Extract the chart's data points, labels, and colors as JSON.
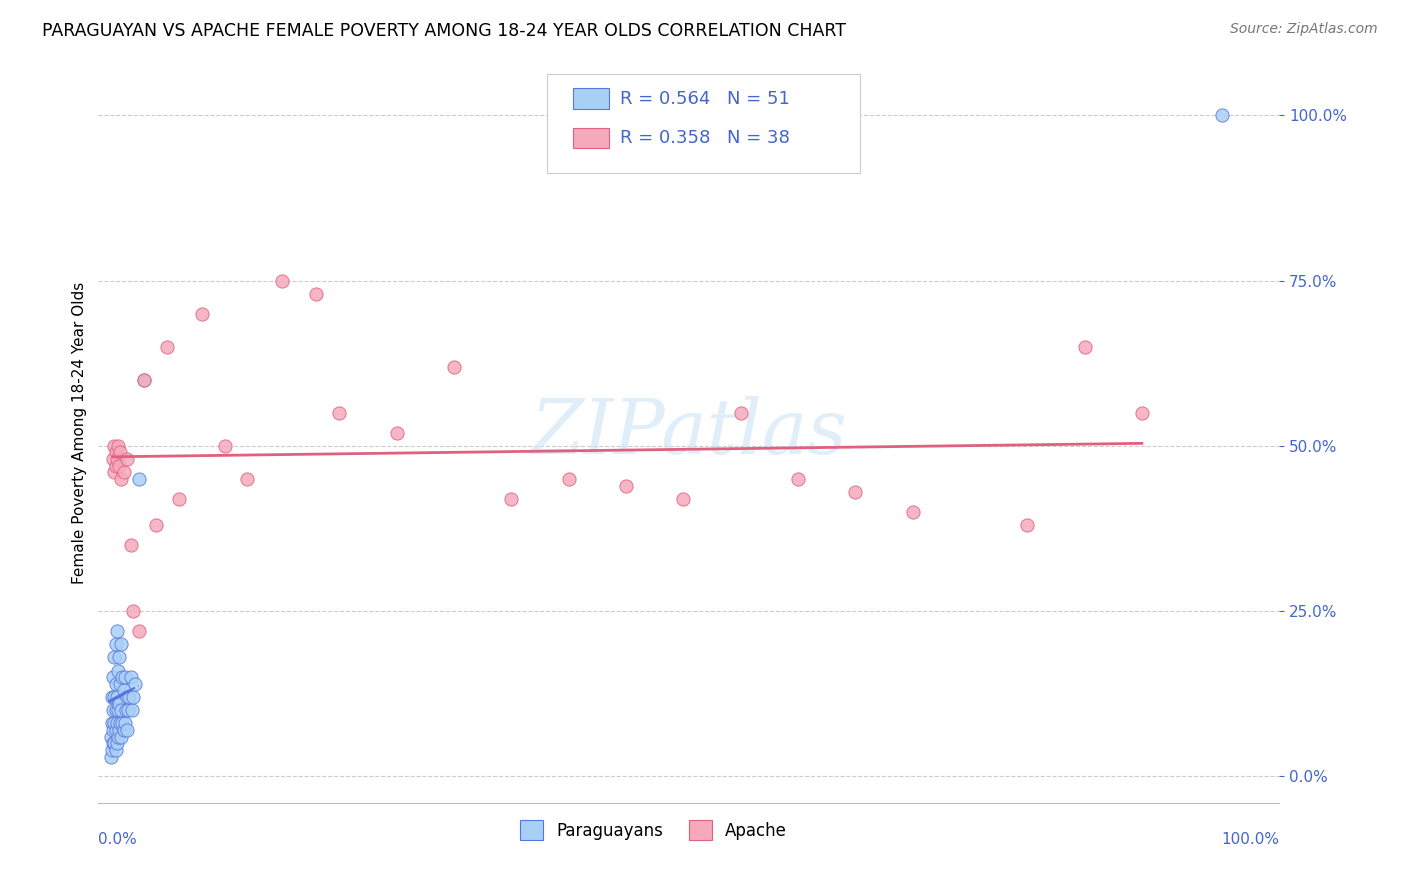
{
  "title": "PARAGUAYAN VS APACHE FEMALE POVERTY AMONG 18-24 YEAR OLDS CORRELATION CHART",
  "source": "Source: ZipAtlas.com",
  "ylabel": "Female Poverty Among 18-24 Year Olds",
  "ytick_values": [
    0.0,
    0.25,
    0.5,
    0.75,
    1.0
  ],
  "ytick_labels": [
    "0.0%",
    "25.0%",
    "50.0%",
    "75.0%",
    "100.0%"
  ],
  "paraguayan_color": "#aacff5",
  "apache_color": "#f5aabb",
  "paraguayan_line_color": "#5577dd",
  "apache_line_color": "#e06080",
  "blue_text_color": "#4466cc",
  "watermark_color": "#cce4f5",
  "paraguayan_x": [
    0.001,
    0.001,
    0.002,
    0.002,
    0.002,
    0.003,
    0.003,
    0.003,
    0.003,
    0.004,
    0.004,
    0.004,
    0.004,
    0.005,
    0.005,
    0.005,
    0.005,
    0.005,
    0.006,
    0.006,
    0.006,
    0.006,
    0.007,
    0.007,
    0.007,
    0.008,
    0.008,
    0.008,
    0.009,
    0.009,
    0.01,
    0.01,
    0.01,
    0.011,
    0.011,
    0.012,
    0.012,
    0.013,
    0.013,
    0.014,
    0.015,
    0.015,
    0.016,
    0.017,
    0.018,
    0.019,
    0.02,
    0.022,
    0.025,
    0.03,
    0.97
  ],
  "paraguayan_y": [
    0.03,
    0.06,
    0.04,
    0.08,
    0.12,
    0.05,
    0.07,
    0.1,
    0.15,
    0.05,
    0.08,
    0.12,
    0.18,
    0.04,
    0.07,
    0.1,
    0.14,
    0.2,
    0.05,
    0.08,
    0.12,
    0.22,
    0.06,
    0.1,
    0.16,
    0.07,
    0.11,
    0.18,
    0.08,
    0.14,
    0.06,
    0.1,
    0.2,
    0.08,
    0.15,
    0.07,
    0.13,
    0.08,
    0.15,
    0.1,
    0.07,
    0.12,
    0.1,
    0.12,
    0.15,
    0.1,
    0.12,
    0.14,
    0.45,
    0.6,
    1.0
  ],
  "apache_x": [
    0.003,
    0.004,
    0.004,
    0.005,
    0.005,
    0.006,
    0.007,
    0.008,
    0.009,
    0.01,
    0.012,
    0.015,
    0.018,
    0.02,
    0.025,
    0.03,
    0.04,
    0.05,
    0.06,
    0.08,
    0.1,
    0.12,
    0.15,
    0.18,
    0.2,
    0.25,
    0.3,
    0.35,
    0.4,
    0.45,
    0.5,
    0.55,
    0.6,
    0.65,
    0.7,
    0.8,
    0.85,
    0.9
  ],
  "apache_y": [
    0.48,
    0.5,
    0.46,
    0.49,
    0.47,
    0.48,
    0.5,
    0.47,
    0.49,
    0.45,
    0.46,
    0.48,
    0.35,
    0.25,
    0.22,
    0.6,
    0.38,
    0.65,
    0.42,
    0.7,
    0.5,
    0.45,
    0.75,
    0.73,
    0.55,
    0.52,
    0.62,
    0.42,
    0.45,
    0.44,
    0.42,
    0.55,
    0.45,
    0.43,
    0.4,
    0.38,
    0.65,
    0.55
  ],
  "legend_r1": "R = 0.564",
  "legend_n1": "N = 51",
  "legend_r2": "R = 0.358",
  "legend_n2": "N = 38",
  "legend_label1": "Paraguayans",
  "legend_label2": "Apache"
}
